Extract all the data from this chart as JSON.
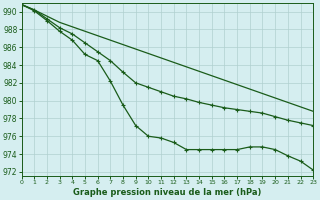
{
  "title": "Graphe pression niveau de la mer (hPa)",
  "background_color": "#d5eef0",
  "grid_color": "#b0d0d0",
  "line_color": "#1a5c1a",
  "xlim": [
    0,
    23
  ],
  "ylim": [
    971.5,
    991.0
  ],
  "yticks": [
    972,
    974,
    976,
    978,
    980,
    982,
    984,
    986,
    988,
    990
  ],
  "xticks": [
    0,
    1,
    2,
    3,
    4,
    5,
    6,
    7,
    8,
    9,
    10,
    11,
    12,
    13,
    14,
    15,
    16,
    17,
    18,
    19,
    20,
    21,
    22,
    23
  ],
  "series1": [
    990.8,
    990.2,
    989.5,
    988.8,
    988.3,
    987.8,
    987.3,
    986.8,
    986.3,
    985.8,
    985.3,
    984.8,
    984.3,
    983.8,
    983.3,
    982.8,
    982.3,
    981.8,
    981.3,
    980.8,
    980.3,
    979.8,
    979.3,
    978.8
  ],
  "series2": [
    990.8,
    990.2,
    989.2,
    988.2,
    987.5,
    986.5,
    985.5,
    984.5,
    983.2,
    982.0,
    981.5,
    981.0,
    980.5,
    980.2,
    979.8,
    979.5,
    979.2,
    979.0,
    978.8,
    978.6,
    978.2,
    977.8,
    977.5,
    977.2
  ],
  "series3": [
    990.8,
    990.1,
    989.0,
    987.8,
    986.8,
    985.2,
    984.5,
    982.2,
    979.5,
    977.2,
    976.0,
    975.8,
    975.3,
    974.5,
    974.5,
    974.5,
    974.5,
    974.5,
    974.8,
    974.8,
    974.5,
    973.8,
    973.2,
    972.2
  ]
}
